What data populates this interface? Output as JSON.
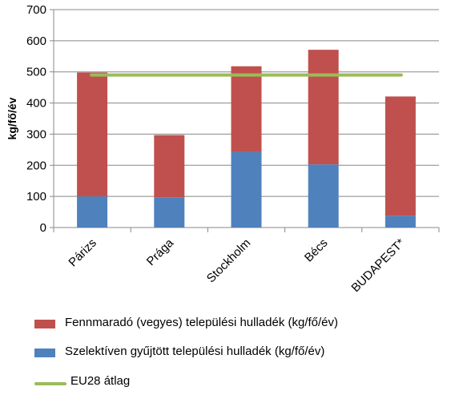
{
  "chart_data": {
    "type": "bar",
    "stacked": true,
    "categories": [
      "Párizs",
      "Prága",
      "Stockholm",
      "Bécs",
      "BUDAPEST*"
    ],
    "series": [
      {
        "name": "Szelektíven gyűjtött települési hulladék (kg/fő/év)",
        "values": [
          100,
          97,
          243,
          203,
          38
        ],
        "color": "#4f81bd"
      },
      {
        "name": "Fennmaradó (vegyes) települési hulladék (kg/fő/év)",
        "values": [
          398,
          200,
          275,
          368,
          383
        ],
        "color": "#c0504d"
      }
    ],
    "reference_line": {
      "name": "EU28 átlag",
      "value": 490,
      "color": "#9bbb59"
    },
    "ylabel": "kg/fő/év",
    "xlabel": "",
    "ylim": [
      0,
      700
    ],
    "yticks": [
      0,
      100,
      200,
      300,
      400,
      500,
      600,
      700
    ],
    "grid": true,
    "legend_position": "bottom"
  }
}
